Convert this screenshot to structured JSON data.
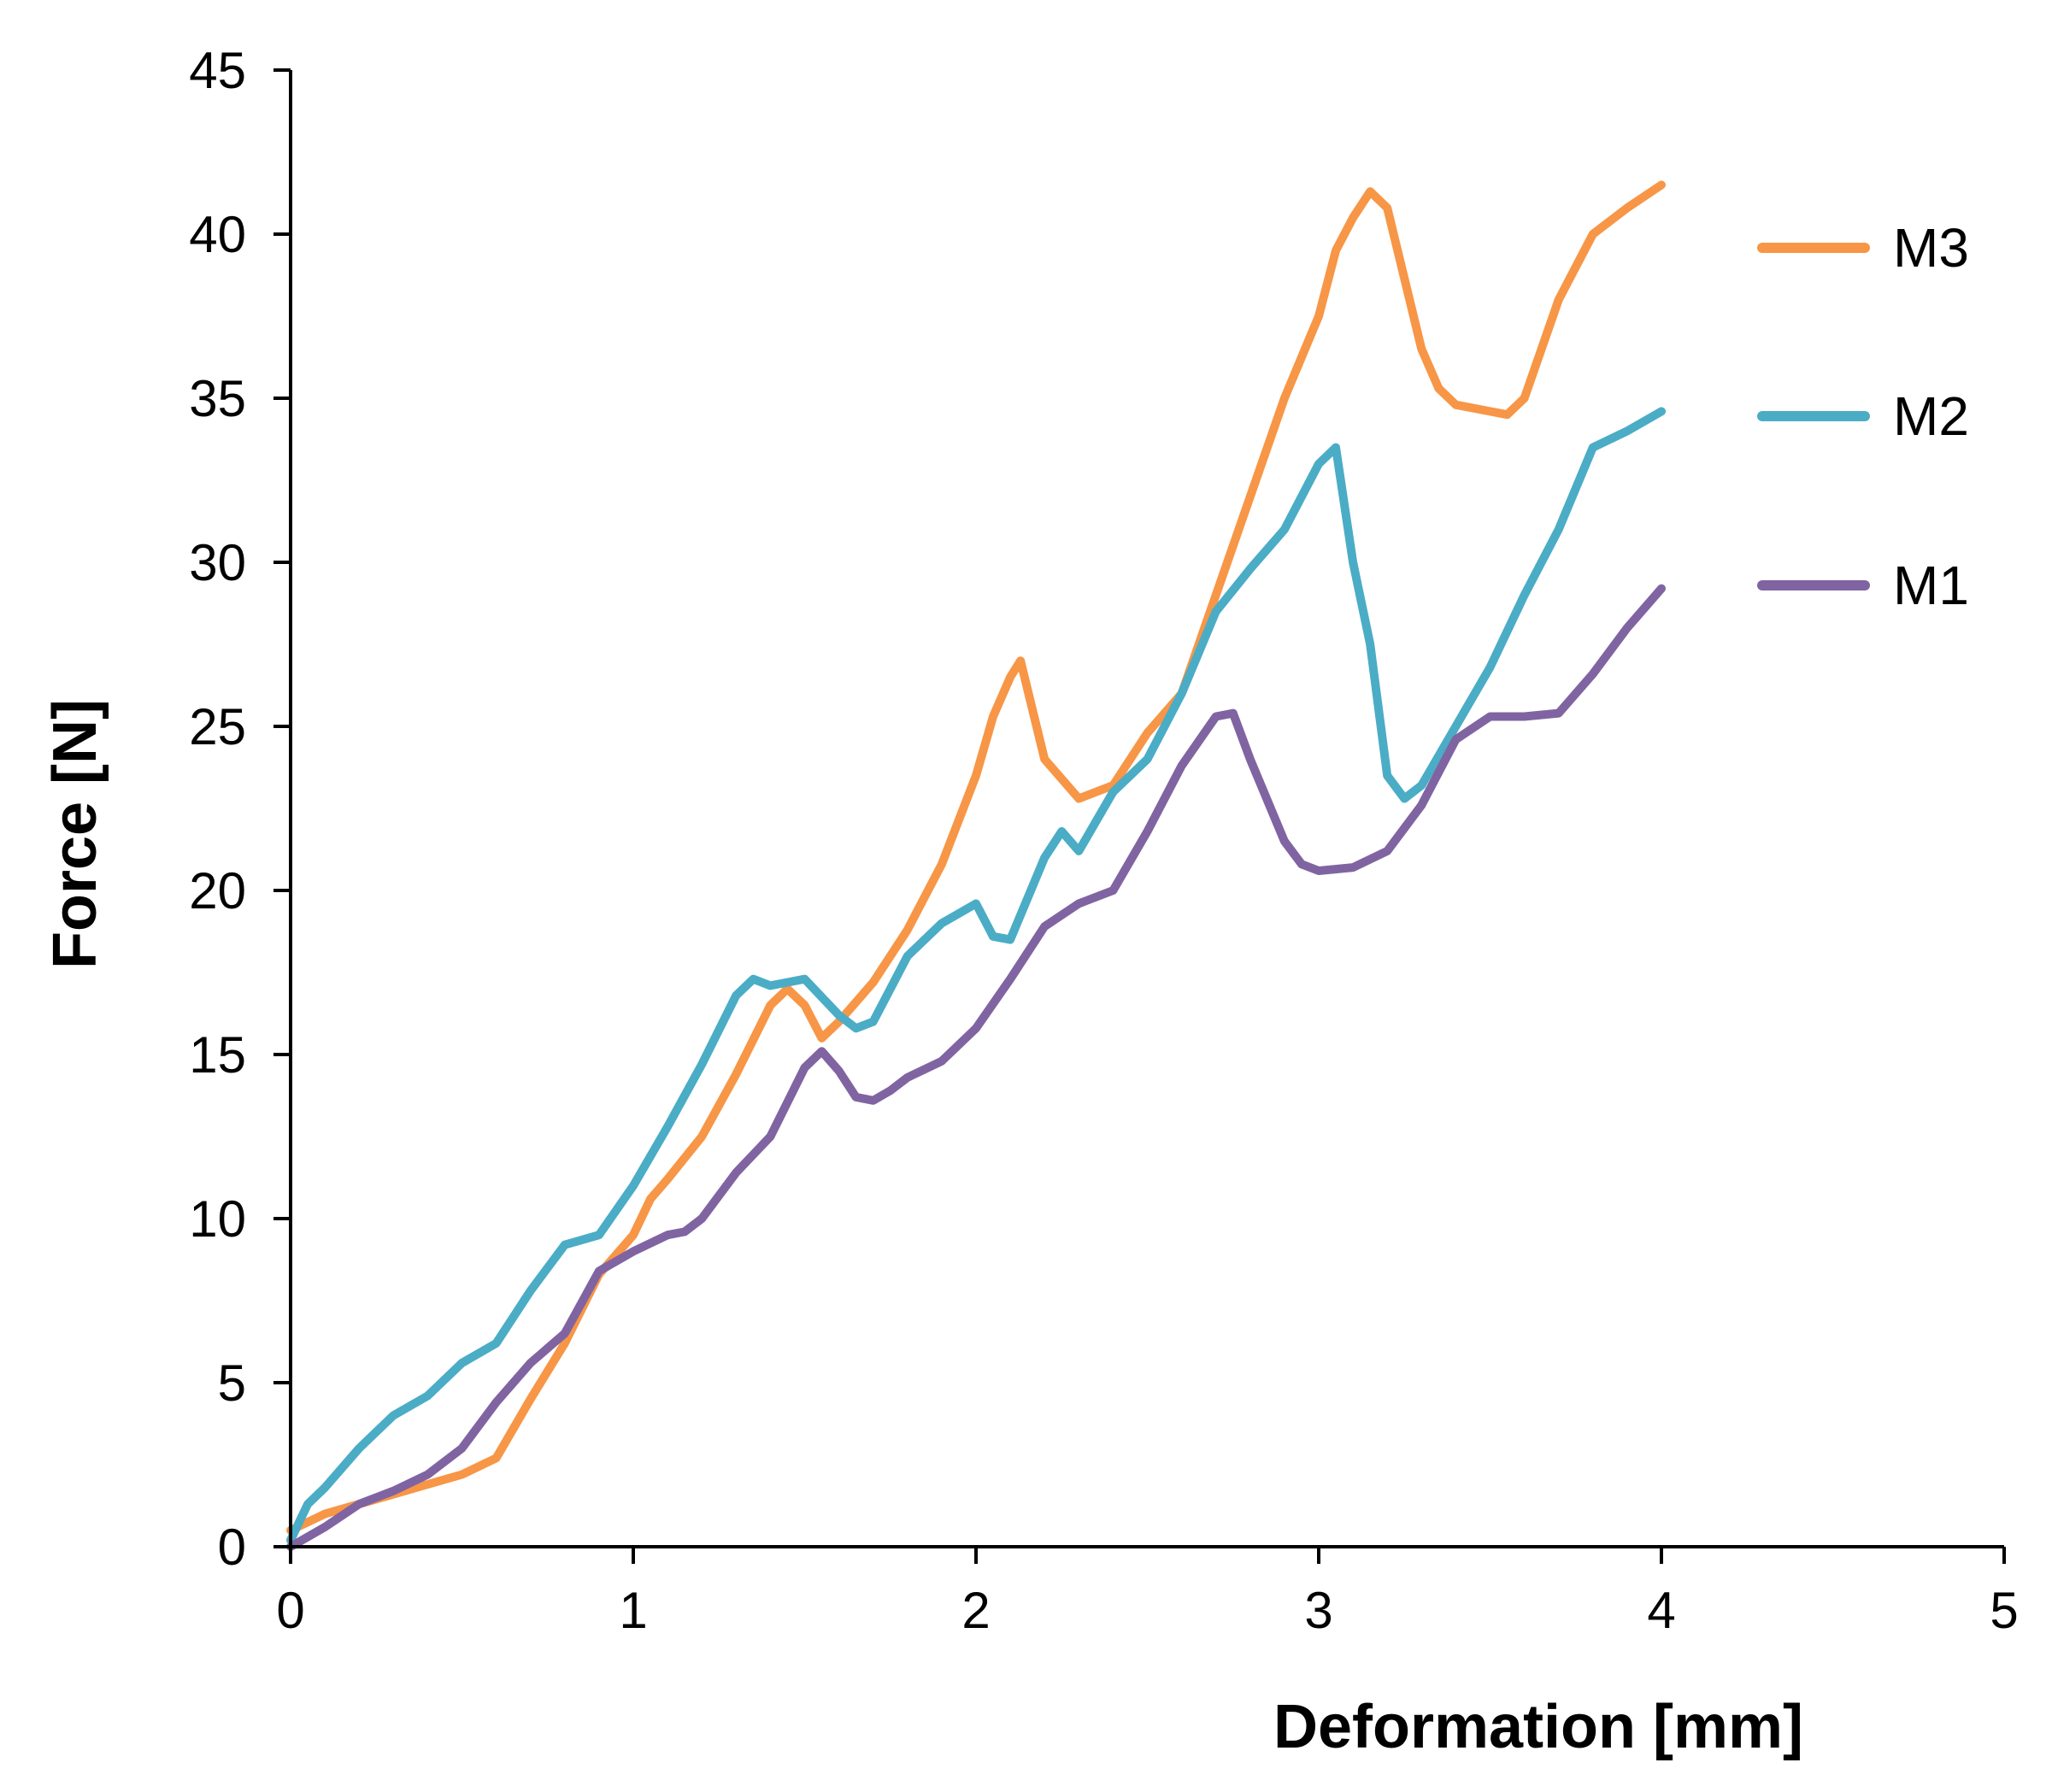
{
  "chart_data": {
    "type": "line",
    "title": "",
    "xlabel": "Deformation [mm]",
    "ylabel": "Force [N]",
    "xlim": [
      0,
      5
    ],
    "ylim": [
      0,
      45
    ],
    "xticks": [
      0,
      1,
      2,
      3,
      4,
      5
    ],
    "yticks": [
      0,
      5,
      10,
      15,
      20,
      25,
      30,
      35,
      40,
      45
    ],
    "grid": false,
    "legend_position": "right",
    "series": [
      {
        "name": "M3",
        "color": "#F79646",
        "x": [
          0,
          0.1,
          0.2,
          0.3,
          0.4,
          0.5,
          0.6,
          0.7,
          0.8,
          0.9,
          1.0,
          1.05,
          1.1,
          1.2,
          1.3,
          1.4,
          1.45,
          1.5,
          1.55,
          1.6,
          1.7,
          1.8,
          1.9,
          2.0,
          2.05,
          2.1,
          2.13,
          2.2,
          2.3,
          2.4,
          2.5,
          2.6,
          2.7,
          2.8,
          2.9,
          3.0,
          3.05,
          3.1,
          3.15,
          3.2,
          3.3,
          3.35,
          3.4,
          3.5,
          3.55,
          3.6,
          3.7,
          3.8,
          3.9,
          4.0
        ],
        "y": [
          0.5,
          1.0,
          1.3,
          1.6,
          1.9,
          2.2,
          2.7,
          4.5,
          6.2,
          8.3,
          9.5,
          10.6,
          11.2,
          12.5,
          14.4,
          16.5,
          17.0,
          16.5,
          15.5,
          16.0,
          17.2,
          18.8,
          20.8,
          23.5,
          25.3,
          26.5,
          27.0,
          24.0,
          22.8,
          23.2,
          24.8,
          26.0,
          29.0,
          32.0,
          35.0,
          37.5,
          39.5,
          40.5,
          41.3,
          40.8,
          36.5,
          35.3,
          34.8,
          34.6,
          34.5,
          35.0,
          38.0,
          40.0,
          40.8,
          41.5
        ]
      },
      {
        "name": "M2",
        "color": "#4BACC6",
        "x": [
          0,
          0.05,
          0.1,
          0.2,
          0.3,
          0.4,
          0.5,
          0.6,
          0.7,
          0.8,
          0.9,
          1.0,
          1.1,
          1.2,
          1.3,
          1.35,
          1.4,
          1.5,
          1.6,
          1.65,
          1.7,
          1.8,
          1.9,
          2.0,
          2.05,
          2.1,
          2.2,
          2.25,
          2.3,
          2.4,
          2.5,
          2.6,
          2.7,
          2.8,
          2.9,
          3.0,
          3.05,
          3.1,
          3.15,
          3.2,
          3.25,
          3.3,
          3.4,
          3.5,
          3.6,
          3.7,
          3.8,
          3.9,
          4.0
        ],
        "y": [
          0.2,
          1.3,
          1.8,
          3.0,
          4.0,
          4.6,
          5.6,
          6.2,
          7.8,
          9.2,
          9.5,
          11.0,
          12.8,
          14.7,
          16.8,
          17.3,
          17.1,
          17.3,
          16.2,
          15.8,
          16.0,
          18.0,
          19.0,
          19.6,
          18.6,
          18.5,
          21.0,
          21.8,
          21.2,
          23.0,
          24.0,
          26.0,
          28.5,
          29.8,
          31.0,
          33.0,
          33.5,
          30.0,
          27.5,
          23.5,
          22.8,
          23.2,
          25.0,
          26.8,
          29.0,
          31.0,
          33.5,
          34.0,
          34.6
        ]
      },
      {
        "name": "M1",
        "color": "#8064A2",
        "x": [
          0,
          0.1,
          0.2,
          0.3,
          0.4,
          0.5,
          0.6,
          0.7,
          0.8,
          0.9,
          1.0,
          1.1,
          1.15,
          1.2,
          1.3,
          1.4,
          1.5,
          1.55,
          1.6,
          1.65,
          1.7,
          1.75,
          1.8,
          1.9,
          2.0,
          2.1,
          2.2,
          2.3,
          2.4,
          2.5,
          2.6,
          2.7,
          2.75,
          2.8,
          2.9,
          2.95,
          3.0,
          3.1,
          3.2,
          3.3,
          3.4,
          3.5,
          3.6,
          3.7,
          3.8,
          3.9,
          4.0
        ],
        "y": [
          0,
          0.6,
          1.3,
          1.7,
          2.2,
          3.0,
          4.4,
          5.6,
          6.5,
          8.4,
          9.0,
          9.5,
          9.6,
          10.0,
          11.4,
          12.5,
          14.6,
          15.1,
          14.5,
          13.7,
          13.6,
          13.9,
          14.3,
          14.8,
          15.8,
          17.3,
          18.9,
          19.6,
          20.0,
          21.8,
          23.8,
          25.3,
          25.4,
          24.0,
          21.5,
          20.8,
          20.6,
          20.7,
          21.2,
          22.6,
          24.6,
          25.3,
          25.3,
          25.4,
          26.6,
          28.0,
          29.2
        ]
      }
    ]
  }
}
